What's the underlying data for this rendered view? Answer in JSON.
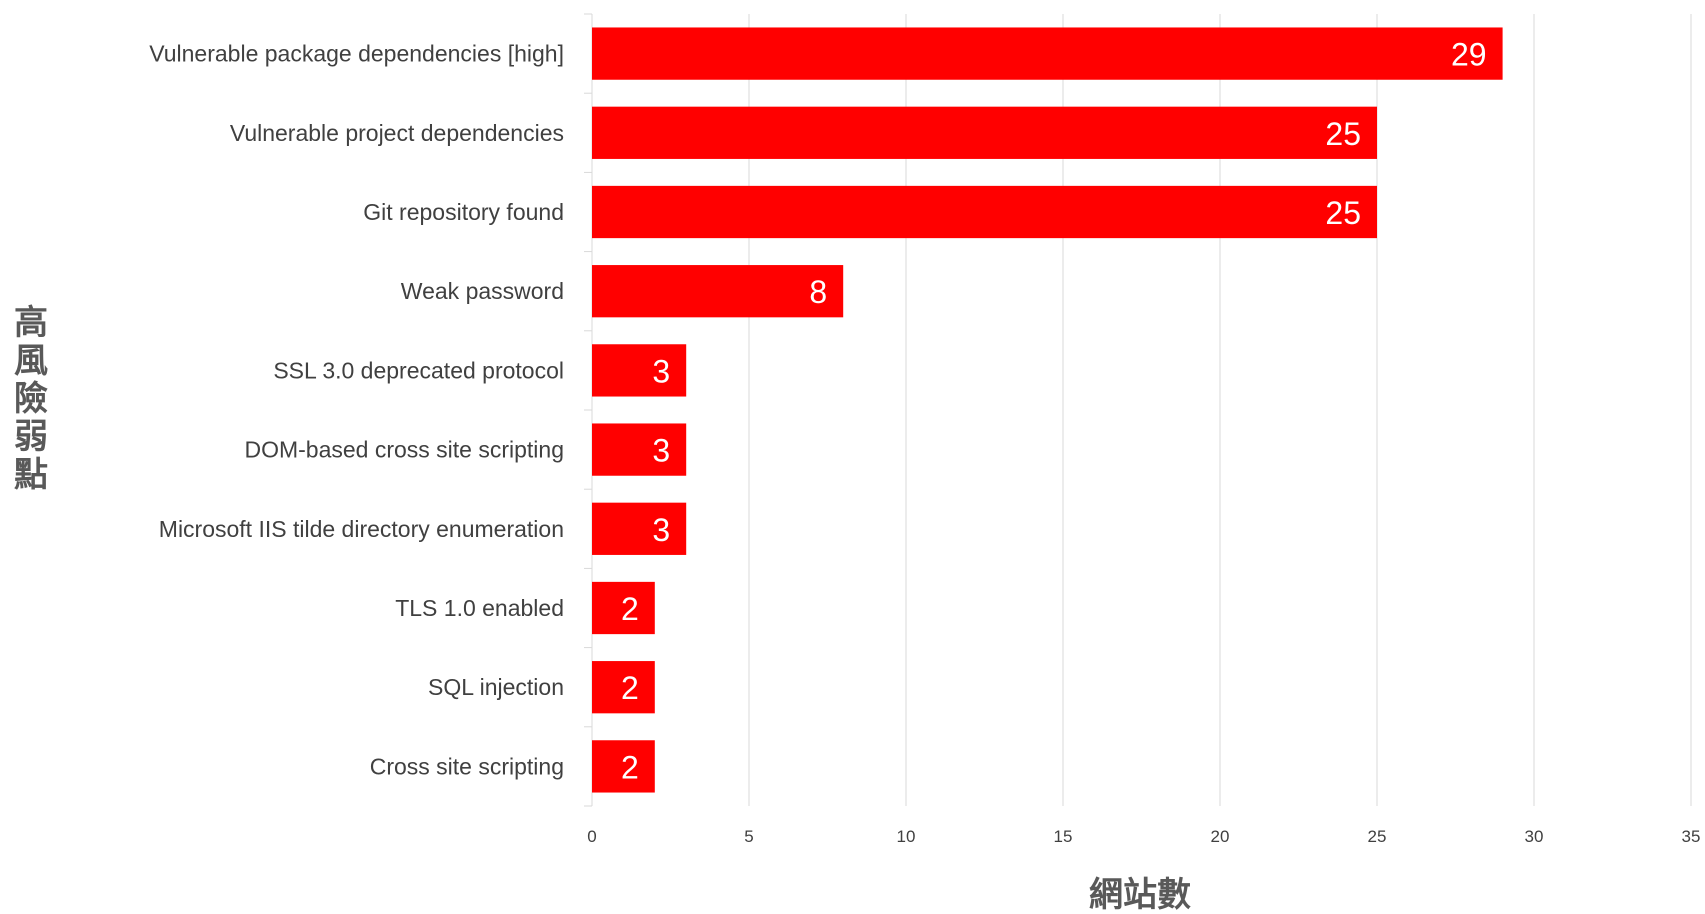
{
  "chart_data": {
    "type": "bar",
    "orientation": "horizontal",
    "categories": [
      "Vulnerable package dependencies [high]",
      "Vulnerable project dependencies",
      "Git repository found",
      "Weak password",
      "SSL 3.0 deprecated protocol",
      "DOM-based cross site scripting",
      "Microsoft IIS tilde directory enumeration",
      "TLS 1.0 enabled",
      "SQL injection",
      "Cross site scripting"
    ],
    "values": [
      29,
      25,
      25,
      8,
      3,
      3,
      3,
      2,
      2,
      2
    ],
    "xlabel": "網站數",
    "ylabel": "高風險弱點",
    "xlim": [
      0,
      35
    ],
    "xticks": [
      "0",
      "5",
      "10",
      "15",
      "20",
      "25",
      "30",
      "35"
    ],
    "grid": true,
    "data_labels": true,
    "bar_color": "#ff0000",
    "grid_color": "#d9d9d9"
  }
}
